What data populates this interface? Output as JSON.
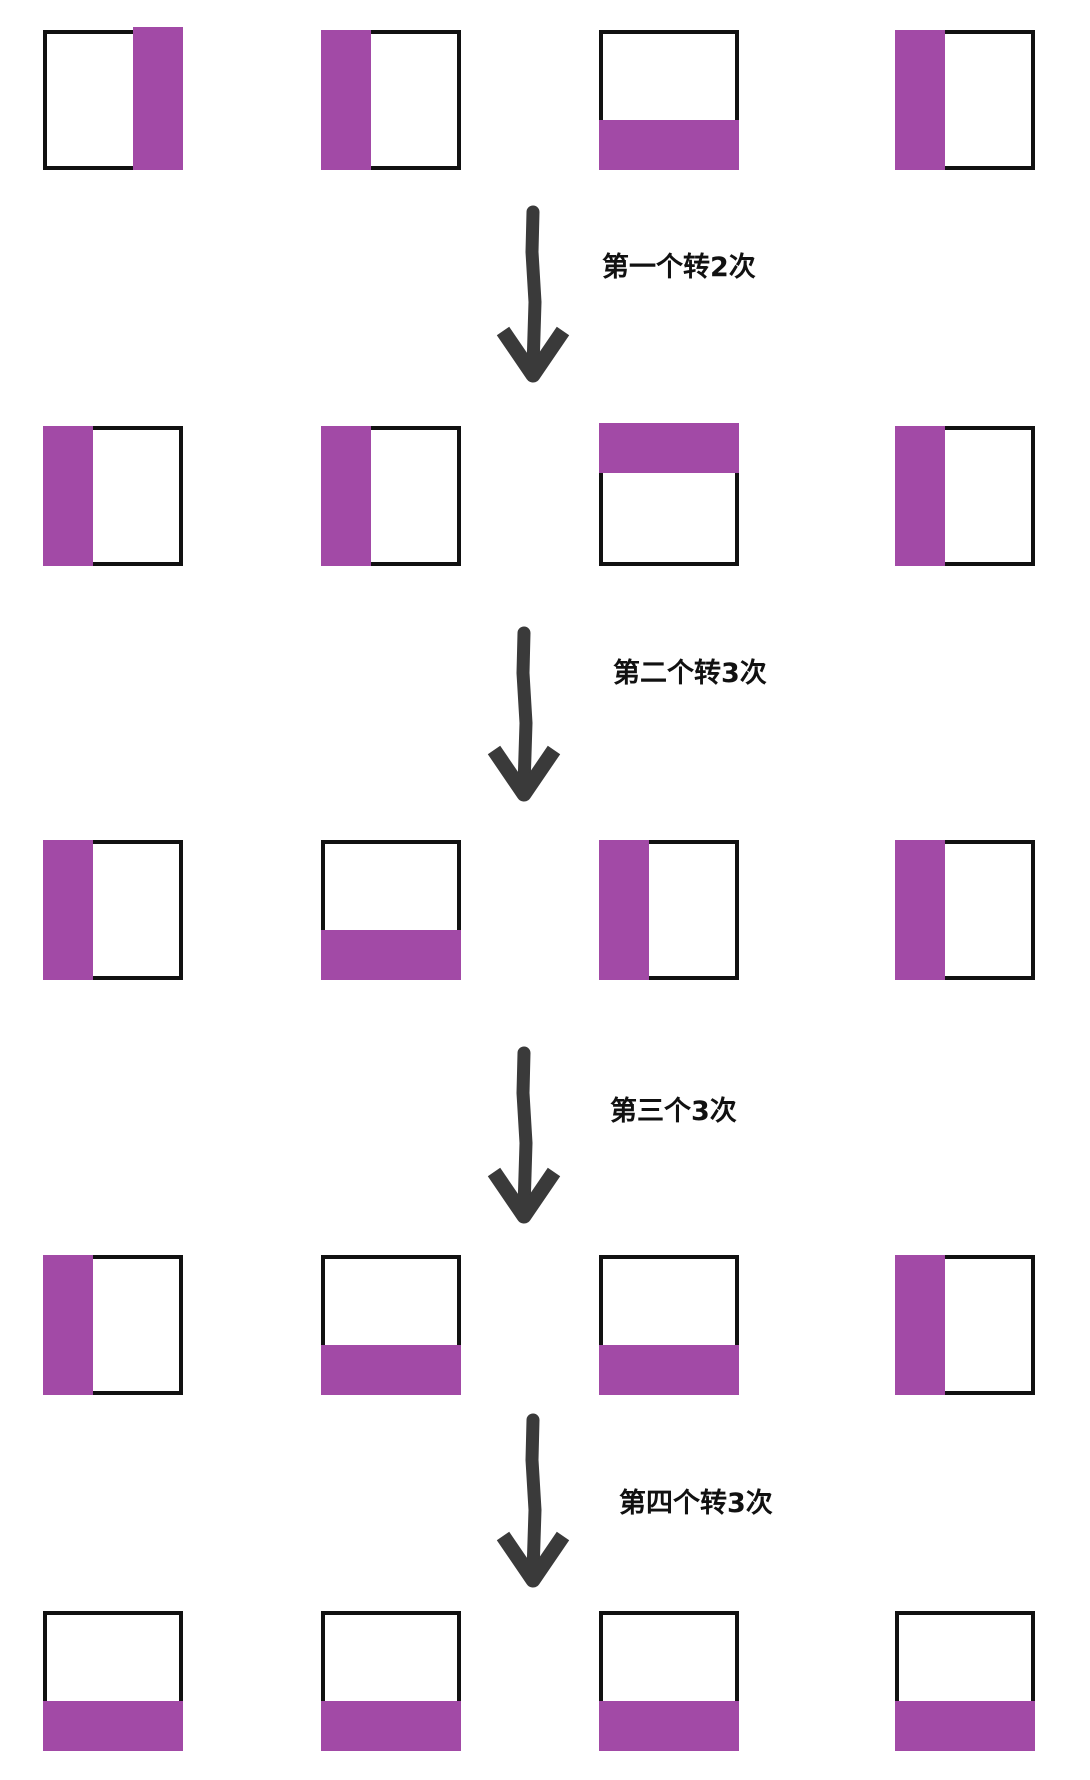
{
  "colors": {
    "fill": "#a24aa6",
    "frame": "#111111",
    "arrow": "#3a3a3a",
    "background": "#ffffff"
  },
  "rows": [
    {
      "squares": [
        "right",
        "left",
        "bottom",
        "left"
      ]
    },
    {
      "squares": [
        "left",
        "left",
        "top",
        "left"
      ]
    },
    {
      "squares": [
        "left",
        "bottom",
        "left",
        "left"
      ]
    },
    {
      "squares": [
        "left",
        "bottom",
        "bottom",
        "left"
      ]
    },
    {
      "squares": [
        "bottom",
        "bottom",
        "bottom",
        "bottom"
      ]
    }
  ],
  "steps": [
    {
      "label": "第一个转2次"
    },
    {
      "label": "第二个转3次"
    },
    {
      "label": "第三个3次"
    },
    {
      "label": "第四个转3次"
    }
  ]
}
